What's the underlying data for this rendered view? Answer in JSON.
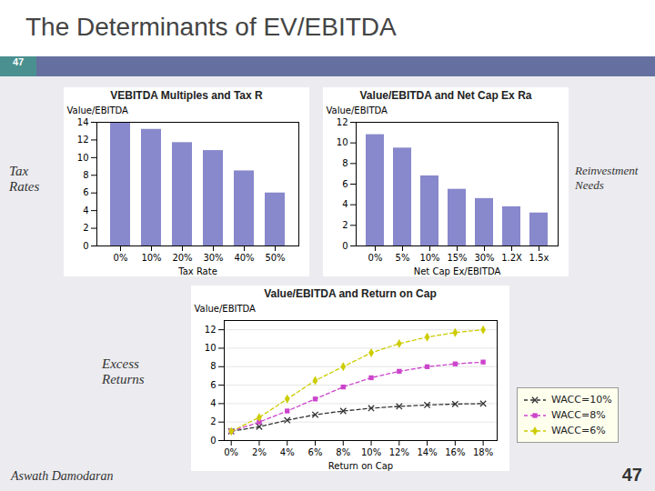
{
  "title": "The Determinants of EV/EBITDA",
  "annotations": [
    "47",
    "Tax\nRates",
    "Reinvestment\nNeeds",
    "Excess\nReturns",
    "Aswath Damodaran",
    "47"
  ],
  "chart_data": [
    {
      "type": "bar",
      "title": "VEBITDA Multiples and Tax R",
      "xlabel": "Tax Rate",
      "ylabel": "Value/EBITDA",
      "categories": [
        "0%",
        "10%",
        "20%",
        "30%",
        "40%",
        "50%"
      ],
      "values": [
        14.0,
        13.2,
        11.7,
        10.8,
        8.5,
        6.0
      ],
      "color": "#8888cc",
      "ylim": [
        0,
        14
      ],
      "yticks": [
        0,
        2,
        4,
        6,
        8,
        10,
        12,
        14
      ]
    },
    {
      "type": "bar",
      "title": "Value/EBITDA and Net Cap Ex Ra",
      "xlabel": "Net Cap Ex/EBITDA",
      "ylabel": "Value/EBITDA",
      "categories": [
        "0%",
        "5%",
        "10%",
        "15%",
        "30%",
        "1.2X",
        "1.5x"
      ],
      "values": [
        10.8,
        9.5,
        6.8,
        5.5,
        4.6,
        3.8,
        3.2
      ],
      "color": "#8888cc",
      "ylim": [
        0,
        12
      ],
      "yticks": [
        0,
        2,
        4,
        6,
        8,
        10,
        12
      ]
    },
    {
      "type": "line",
      "title": "Value/EBITDA and Return on Cap",
      "xlabel": "Return on Cap",
      "ylabel": "Value/EBITDA",
      "x": [
        0.0,
        0.02,
        0.04,
        0.06,
        0.08,
        0.1,
        0.12,
        0.14,
        0.16,
        0.18
      ],
      "series": [
        {
          "name": "WACC=10%",
          "color": "#333333",
          "marker": "x",
          "line_style": "dashed",
          "values": [
            1.0,
            1.5,
            2.2,
            2.8,
            3.2,
            3.5,
            3.7,
            3.85,
            3.95,
            4.0
          ]
        },
        {
          "name": "WACC=8%",
          "color": "#cc44cc",
          "marker": "square",
          "line_style": "dashed",
          "values": [
            1.0,
            2.0,
            3.2,
            4.5,
            5.8,
            6.8,
            7.5,
            8.0,
            8.3,
            8.5
          ]
        },
        {
          "name": "WACC=6%",
          "color": "#cccc00",
          "marker": "diamond",
          "line_style": "dashed",
          "values": [
            1.0,
            2.5,
            4.5,
            6.5,
            8.0,
            9.5,
            10.5,
            11.2,
            11.7,
            12.0
          ]
        }
      ],
      "xlim": [
        -0.005,
        0.19
      ],
      "xticks": [
        {
          "value": 0,
          "label": "0%"
        },
        {
          "value": 0.02,
          "label": "2%"
        },
        {
          "value": 0.04,
          "label": "4%"
        },
        {
          "value": 0.06,
          "label": "6%"
        },
        {
          "value": 0.08,
          "label": "8%"
        },
        {
          "value": 0.1,
          "label": "10%"
        },
        {
          "value": 0.12,
          "label": "12%"
        },
        {
          "value": 0.14,
          "label": "14%"
        },
        {
          "value": 0.16,
          "label": "16%"
        },
        {
          "value": 0.18,
          "label": "18%"
        }
      ],
      "ylim": [
        0,
        13
      ],
      "yticks": [
        0,
        2,
        4,
        6,
        8,
        10,
        12
      ],
      "grid": true,
      "legend": "lower right"
    }
  ]
}
